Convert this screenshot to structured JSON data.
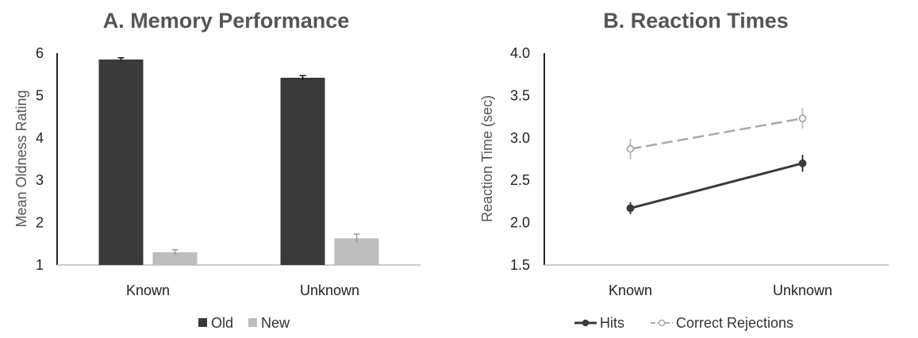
{
  "chart_data": [
    {
      "type": "bar",
      "title": "A. Memory Performance",
      "xlabel": "",
      "ylabel": "Mean Oldness Rating",
      "ylim": [
        1,
        6
      ],
      "yticks": [
        "1",
        "2",
        "3",
        "4",
        "5",
        "6"
      ],
      "categories": [
        "Known",
        "Unknown"
      ],
      "series": [
        {
          "name": "Old",
          "color": "#3a3a3a",
          "values": [
            5.85,
            5.42
          ],
          "error": [
            0.04,
            0.05
          ]
        },
        {
          "name": "New",
          "color": "#bdbdbd",
          "values": [
            1.3,
            1.63
          ],
          "error": [
            0.06,
            0.1
          ]
        }
      ],
      "grid": false,
      "legend_position": "bottom"
    },
    {
      "type": "line",
      "title": "B. Reaction Times",
      "xlabel": "",
      "ylabel": "Reaction Time (sec)",
      "ylim": [
        1.5,
        4.0
      ],
      "yticks": [
        "1.5",
        "2.0",
        "2.5",
        "3.0",
        "3.5",
        "4.0"
      ],
      "categories": [
        "Known",
        "Unknown"
      ],
      "series": [
        {
          "name": "Hits",
          "color": "#3a3a3a",
          "style": "solid",
          "values": [
            2.17,
            2.7
          ],
          "error": [
            0.07,
            0.1
          ]
        },
        {
          "name": "Correct Rejections",
          "color": "#a8a8a8",
          "style": "dashed",
          "values": [
            2.87,
            3.23
          ],
          "error": [
            0.12,
            0.12
          ]
        }
      ],
      "grid": false,
      "legend_position": "bottom"
    }
  ]
}
